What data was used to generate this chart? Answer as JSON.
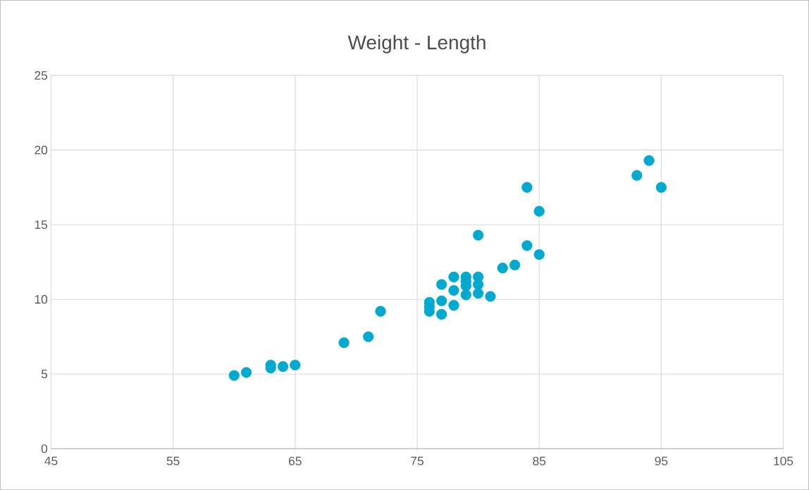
{
  "chart_data": {
    "type": "scatter",
    "title": "Weight - Length",
    "x": [
      60,
      61,
      63,
      63,
      64,
      65,
      69,
      71,
      72,
      76,
      76,
      76,
      77,
      77,
      77,
      78,
      78,
      78,
      79,
      79,
      79,
      79,
      80,
      80,
      80,
      80,
      81,
      82,
      83,
      84,
      84,
      85,
      85,
      93,
      94,
      95
    ],
    "values": [
      4.9,
      5.1,
      5.6,
      5.4,
      5.5,
      5.6,
      7.1,
      7.5,
      9.2,
      9.2,
      9.5,
      9.8,
      9.0,
      9.9,
      11.0,
      9.6,
      10.6,
      11.5,
      10.3,
      10.9,
      11.2,
      11.5,
      10.4,
      11.0,
      11.5,
      14.3,
      10.2,
      12.1,
      12.3,
      13.6,
      17.5,
      13.0,
      15.9,
      18.3,
      19.3,
      17.5
    ],
    "color": "#00a9ce",
    "marker": "circle",
    "xlim": [
      45,
      105
    ],
    "xticks": [
      45,
      55,
      65,
      75,
      85,
      95,
      105
    ],
    "ylim": [
      0,
      25
    ],
    "yticks": [
      0,
      5,
      10,
      15,
      20,
      25
    ],
    "grid": true
  }
}
